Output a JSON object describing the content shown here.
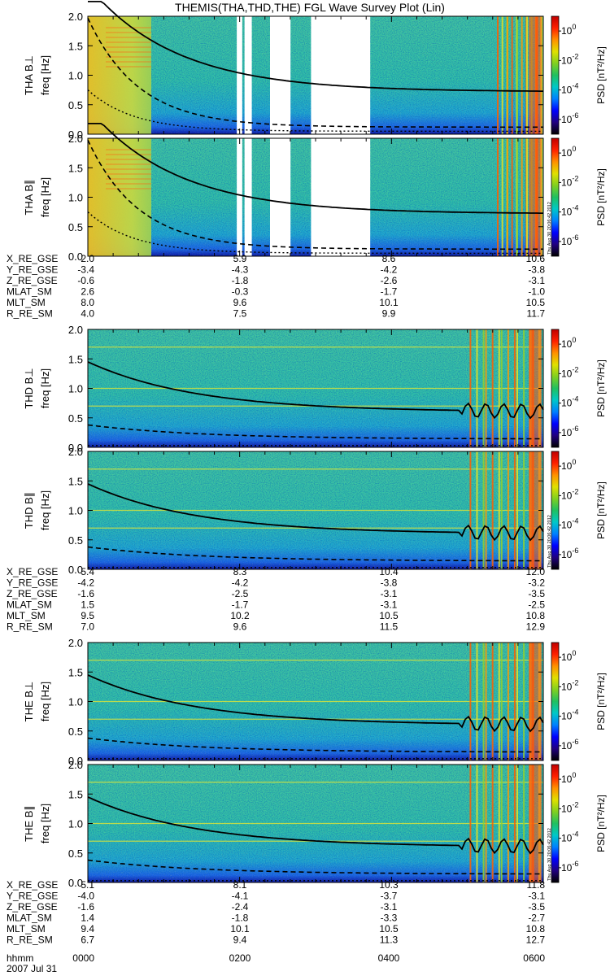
{
  "chart_data": {
    "type": "heatmap",
    "title": "THEMIS(THA,THD,THE) FGL Wave Survey Plot (Lin)",
    "date_label": "2007 Jul 31",
    "time_label_name": "hhmm",
    "time_ticks": [
      "0000",
      "0200",
      "0400",
      "0600"
    ],
    "freq_ylabel": "freq [Hz]",
    "ylim": [
      0,
      2.0
    ],
    "y_ticks": [
      "0.0",
      "0.5",
      "1.0",
      "1.5",
      "2.0"
    ],
    "colorbar": {
      "label": "PSD [nT²/Hz]",
      "scale": "log",
      "range": [
        1e-07,
        10.0
      ],
      "ticks": [
        {
          "mantissa": "10",
          "exp": "0"
        },
        {
          "mantissa": "10",
          "exp": "-2"
        },
        {
          "mantissa": "10",
          "exp": "-4"
        },
        {
          "mantissa": "10",
          "exp": "-6"
        }
      ],
      "colors": [
        "#000000",
        "#200080",
        "#0000ff",
        "#0080ff",
        "#00c8c8",
        "#20c060",
        "#80d020",
        "#e0e000",
        "#ff9000",
        "#ff2000",
        "#c00000"
      ]
    },
    "stamp_text": "Thu Aug 30 20:06:42 2012",
    "probes": [
      {
        "id": "THA",
        "panels": [
          {
            "label": "THA B⊥",
            "component": "perp",
            "gaps": [
              [
                0.327,
                0.339
              ],
              [
                0.344,
                0.36
              ],
              [
                0.4,
                0.445
              ],
              [
                0.49,
                0.62
              ]
            ],
            "tail_start": 0.9
          },
          {
            "label": "THA B∥",
            "component": "par",
            "gaps": [
              [
                0.327,
                0.339
              ],
              [
                0.344,
                0.36
              ],
              [
                0.4,
                0.445
              ],
              [
                0.49,
                0.62
              ]
            ],
            "tail_start": 0.9
          }
        ],
        "ephemeris": {
          "rows": [
            {
              "name": "X_RE_GSE",
              "values": [
                "2.0",
                "5.9",
                "8.6",
                "10.6"
              ]
            },
            {
              "name": "Y_RE_GSE",
              "values": [
                "-3.4",
                "-4.3",
                "-4.2",
                "-3.8"
              ]
            },
            {
              "name": "Z_RE_GSE",
              "values": [
                "-0.6",
                "-1.8",
                "-2.6",
                "-3.1"
              ]
            },
            {
              "name": "MLAT_SM",
              "values": [
                "2.6",
                "-0.3",
                "-1.7",
                "-1.0"
              ]
            },
            {
              "name": "MLT_SM",
              "values": [
                "8.0",
                "9.6",
                "10.1",
                "10.5"
              ]
            },
            {
              "name": "R_RE_SM",
              "values": [
                "4.0",
                "7.5",
                "9.9",
                "11.7"
              ]
            }
          ]
        }
      },
      {
        "id": "THD",
        "panels": [
          {
            "label": "THD B⊥",
            "component": "perp",
            "gaps": [],
            "tail_start": 0.84
          },
          {
            "label": "THD B∥",
            "component": "par",
            "gaps": [],
            "tail_start": 0.84
          }
        ],
        "ephemeris": {
          "rows": [
            {
              "name": "X_RE_GSE",
              "values": [
                "5.4",
                "8.3",
                "10.4",
                "12.0"
              ]
            },
            {
              "name": "Y_RE_GSE",
              "values": [
                "-4.2",
                "-4.2",
                "-3.8",
                "-3.2"
              ]
            },
            {
              "name": "Z_RE_GSE",
              "values": [
                "-1.6",
                "-2.5",
                "-3.1",
                "-3.5"
              ]
            },
            {
              "name": "MLAT_SM",
              "values": [
                "1.5",
                "-1.7",
                "-3.1",
                "-2.5"
              ]
            },
            {
              "name": "MLT_SM",
              "values": [
                "9.5",
                "10.2",
                "10.5",
                "10.8"
              ]
            },
            {
              "name": "R_RE_SM",
              "values": [
                "7.0",
                "9.6",
                "11.5",
                "12.9"
              ]
            }
          ]
        }
      },
      {
        "id": "THE",
        "panels": [
          {
            "label": "THE B⊥",
            "component": "perp",
            "gaps": [],
            "tail_start": 0.84
          },
          {
            "label": "THE B∥",
            "component": "par",
            "gaps": [],
            "tail_start": 0.84
          }
        ],
        "ephemeris": {
          "rows": [
            {
              "name": "X_RE_GSE",
              "values": [
                "5.1",
                "8.1",
                "10.3",
                "11.8"
              ]
            },
            {
              "name": "Y_RE_GSE",
              "values": [
                "-4.0",
                "-4.1",
                "-3.7",
                "-3.1"
              ]
            },
            {
              "name": "Z_RE_GSE",
              "values": [
                "-1.6",
                "-2.4",
                "-3.1",
                "-3.5"
              ]
            },
            {
              "name": "MLAT_SM",
              "values": [
                "1.4",
                "-1.8",
                "-3.3",
                "-2.7"
              ]
            },
            {
              "name": "MLT_SM",
              "values": [
                "9.4",
                "10.1",
                "10.5",
                "10.8"
              ]
            },
            {
              "name": "R_RE_SM",
              "values": [
                "6.7",
                "9.4",
                "11.3",
                "12.7"
              ]
            }
          ]
        }
      }
    ]
  }
}
